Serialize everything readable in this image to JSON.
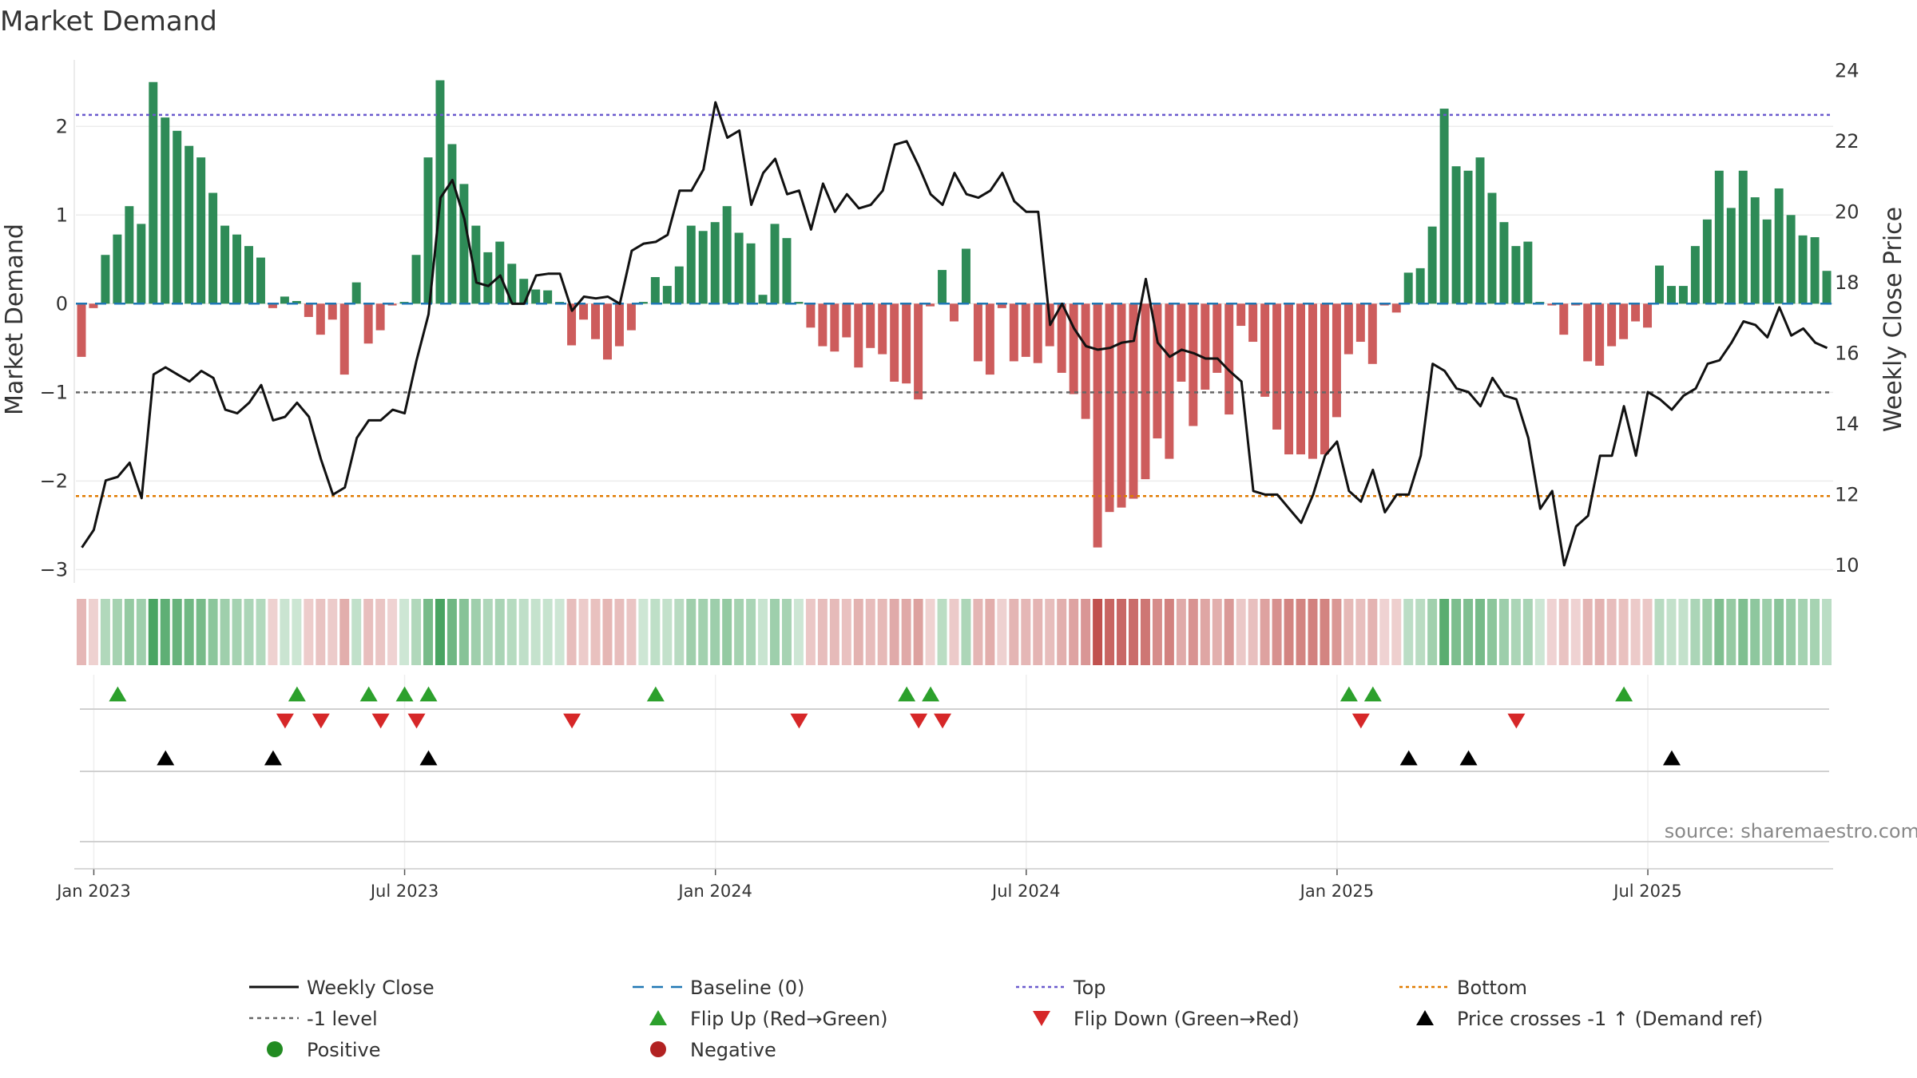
{
  "chart_data": {
    "type": "bar",
    "title": "Market Demand",
    "ylabel": "Market Demand",
    "y2label": "Weekly Close Price",
    "ylim": [
      -3.15,
      2.75
    ],
    "y2lim": [
      9.5,
      24.3
    ],
    "yticks": [
      "2",
      "1",
      "0",
      "−1",
      "−2",
      "−3"
    ],
    "yticks_values": [
      2,
      1,
      0,
      -1,
      -2,
      -3
    ],
    "y2ticks": [
      "24",
      "22",
      "20",
      "18",
      "16",
      "14",
      "12",
      "10"
    ],
    "y2ticks_values": [
      24,
      22,
      20,
      18,
      16,
      14,
      12,
      10
    ],
    "xticks": [
      "Jan 2023",
      "Jul 2023",
      "Jan 2024",
      "Jul 2024",
      "Jan 2025",
      "Jul 2025"
    ],
    "xticks_week_index": [
      1,
      27,
      53,
      79,
      105,
      131
    ],
    "source": "source: sharemaestro.com",
    "levels": {
      "top": 2.13,
      "bottom": -2.17,
      "minus_one": -1,
      "baseline": 0
    },
    "colors": {
      "positive_bar": "#2e8b57",
      "negative_bar": "#cd5c5c",
      "close_line": "#111111",
      "top_line": "#6a5acd",
      "bottom_line": "#e07b00",
      "minus_one_line": "#666666",
      "baseline": "#1f77b4",
      "flip_up": "#2ca02c",
      "flip_down": "#d62728",
      "cross": "#000000",
      "positive_dot": "#228b22",
      "negative_dot": "#b22222"
    },
    "series": [
      {
        "name": "Market Demand",
        "values": [
          -0.6,
          -0.05,
          0.55,
          0.78,
          1.1,
          0.9,
          2.5,
          2.1,
          1.95,
          1.78,
          1.65,
          1.25,
          0.88,
          0.78,
          0.65,
          0.52,
          -0.05,
          0.08,
          0.03,
          -0.15,
          -0.35,
          -0.18,
          -0.8,
          0.24,
          -0.45,
          -0.3,
          -0.02,
          0.02,
          0.55,
          1.65,
          2.52,
          1.8,
          1.35,
          0.88,
          0.58,
          0.7,
          0.45,
          0.28,
          0.16,
          0.15,
          0.02,
          -0.47,
          -0.18,
          -0.4,
          -0.63,
          -0.48,
          -0.3,
          0.02,
          0.3,
          0.2,
          0.42,
          0.88,
          0.82,
          0.92,
          1.1,
          0.8,
          0.68,
          0.1,
          0.9,
          0.74,
          0.02,
          -0.27,
          -0.48,
          -0.54,
          -0.38,
          -0.72,
          -0.5,
          -0.57,
          -0.88,
          -0.9,
          -1.08,
          -0.03,
          0.38,
          -0.2,
          0.62,
          -0.65,
          -0.8,
          -0.05,
          -0.65,
          -0.6,
          -0.67,
          -0.48,
          -0.78,
          -1.02,
          -1.3,
          -2.75,
          -2.35,
          -2.3,
          -2.2,
          -1.98,
          -1.52,
          -1.75,
          -0.88,
          -1.38,
          -0.97,
          -0.78,
          -1.25,
          -0.25,
          -0.43,
          -1.05,
          -1.42,
          -1.7,
          -1.7,
          -1.75,
          -1.7,
          -1.28,
          -0.57,
          -0.43,
          -0.68,
          -0.02,
          -0.1,
          0.35,
          0.4,
          0.87,
          2.2,
          1.55,
          1.5,
          1.65,
          1.25,
          0.92,
          0.65,
          0.7,
          0.02,
          -0.02,
          -0.35,
          -0.02,
          -0.65,
          -0.7,
          -0.48,
          -0.4,
          -0.2,
          -0.27,
          0.43,
          0.2,
          0.2,
          0.65,
          0.95,
          1.5,
          1.08,
          1.5,
          1.2,
          0.95,
          1.3,
          1.0,
          0.77,
          0.75,
          0.37
        ]
      },
      {
        "name": "Weekly Close",
        "values": [
          10.5,
          11.0,
          12.4,
          12.5,
          12.9,
          11.9,
          15.4,
          15.6,
          15.4,
          15.2,
          15.5,
          15.3,
          14.4,
          14.3,
          14.6,
          15.1,
          14.1,
          14.2,
          14.6,
          14.2,
          13.0,
          12.0,
          12.2,
          13.6,
          14.1,
          14.1,
          14.4,
          14.3,
          15.8,
          17.1,
          20.4,
          20.9,
          19.8,
          18.0,
          17.9,
          18.2,
          17.4,
          17.4,
          18.2,
          18.25,
          18.25,
          17.2,
          17.6,
          17.55,
          17.6,
          17.4,
          18.9,
          19.1,
          19.15,
          19.35,
          20.6,
          20.6,
          21.2,
          23.1,
          22.1,
          22.3,
          20.2,
          21.1,
          21.5,
          20.5,
          20.6,
          19.5,
          20.8,
          20.0,
          20.5,
          20.1,
          20.2,
          20.6,
          21.9,
          22.0,
          21.3,
          20.5,
          20.2,
          21.1,
          20.5,
          20.4,
          20.6,
          21.1,
          20.3,
          20.0,
          20.0,
          16.8,
          17.4,
          16.7,
          16.2,
          16.1,
          16.15,
          16.3,
          16.35,
          18.1,
          16.3,
          15.9,
          16.1,
          16.0,
          15.85,
          15.85,
          15.5,
          15.2,
          12.1,
          12.0,
          12.0,
          11.6,
          11.2,
          12.0,
          13.1,
          13.5,
          12.1,
          11.8,
          12.7,
          11.5,
          12.0,
          12.0,
          13.1,
          15.7,
          15.5,
          15.0,
          14.9,
          14.5,
          15.3,
          14.8,
          14.7,
          13.6,
          11.6,
          12.1,
          10.0,
          11.1,
          11.4,
          13.1,
          13.1,
          14.5,
          13.1,
          14.9,
          14.7,
          14.4,
          14.8,
          15.0,
          15.7,
          15.8,
          16.3,
          16.9,
          16.8,
          16.45,
          17.3,
          16.5,
          16.7,
          16.3,
          16.15
        ]
      }
    ],
    "signals": {
      "flip_up_weeks": [
        3,
        18,
        24,
        27,
        29,
        48,
        69,
        71,
        106,
        108,
        129
      ],
      "flip_down_weeks": [
        17,
        20,
        25,
        28,
        41,
        60,
        70,
        72,
        107,
        120
      ],
      "cross_up_weeks": [
        7,
        16,
        29,
        111,
        116,
        133
      ]
    },
    "legend": [
      {
        "label": "Weekly Close",
        "marker": "line"
      },
      {
        "label": "Baseline (0)",
        "marker": "dash"
      },
      {
        "label": "Top",
        "marker": "dot-line"
      },
      {
        "label": "Bottom",
        "marker": "dot-line-orange"
      },
      {
        "label": "-1 level",
        "marker": "dot-line-grey"
      },
      {
        "label": "Flip Up (Red→Green)",
        "marker": "triangle-up"
      },
      {
        "label": "Flip Down (Green→Red)",
        "marker": "triangle-down"
      },
      {
        "label": "Price crosses -1 ↑ (Demand ref)",
        "marker": "triangle-up-black"
      },
      {
        "label": "Positive",
        "marker": "circle-green"
      },
      {
        "label": "Negative",
        "marker": "circle-red"
      }
    ],
    "legend_placement": "bottom"
  }
}
